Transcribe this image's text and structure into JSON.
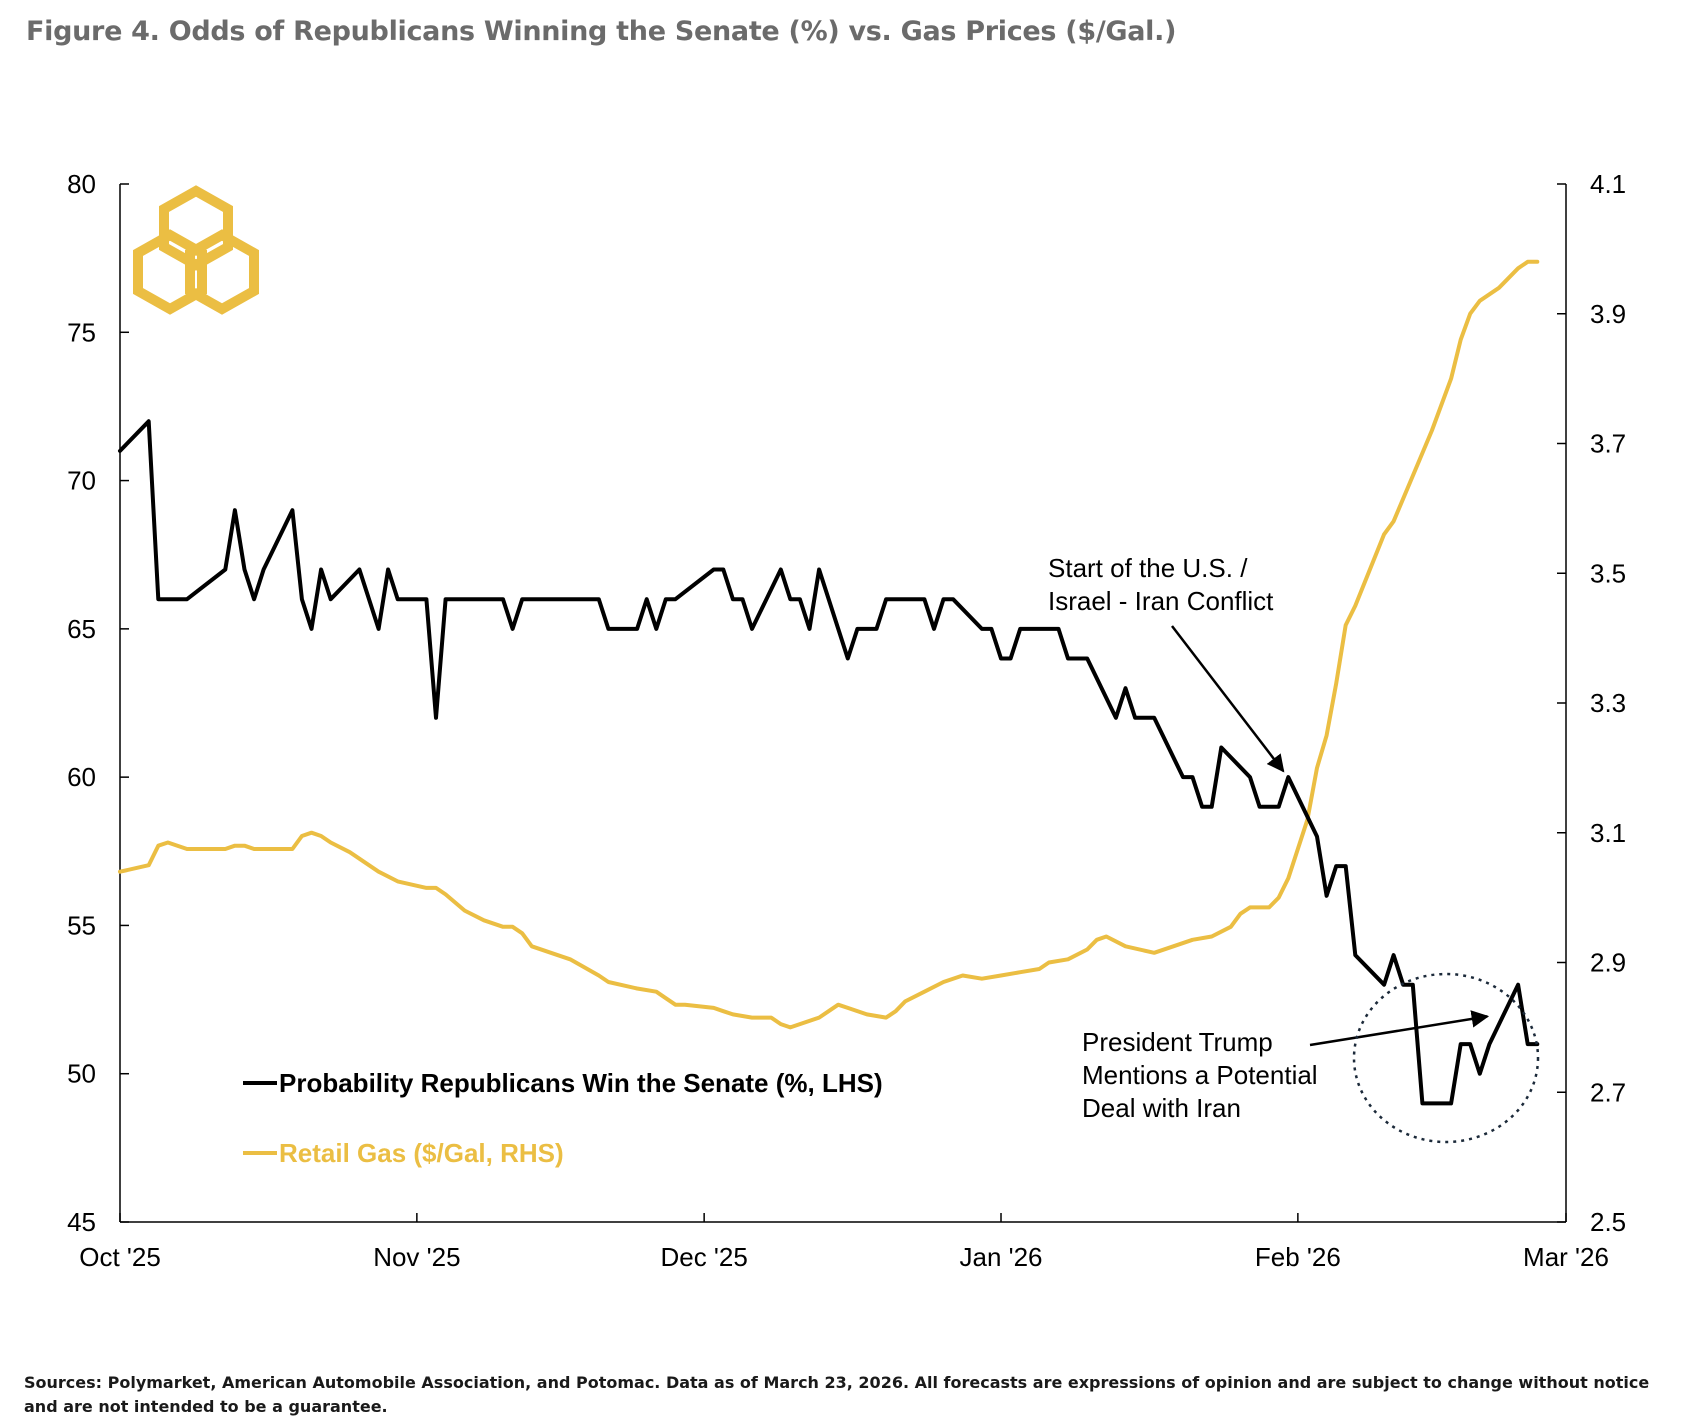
{
  "title": "Figure 4. Odds of Republicans Winning the Senate (%) vs. Gas Prices ($/Gal.)",
  "footnote": "Sources: Polymarket, American Automobile Association, and Potomac. Data as of March 23, 2026. All forecasts are expressions of opinion and are subject to change without notice and are not intended to be a guarantee.",
  "colors": {
    "gold": "#EBBE43",
    "black": "#000000",
    "title": "#6b6b6b"
  },
  "logo_icon": "hexagon-trefoil-logo-icon",
  "chart_data": {
    "type": "line",
    "x_axis": {
      "type": "date",
      "range": [
        "2025-10-01",
        "2026-03-01"
      ],
      "ticks": [
        {
          "date": "2025-10-01",
          "label": "Oct '25"
        },
        {
          "date": "2025-11-01",
          "label": "Nov '25"
        },
        {
          "date": "2025-12-01",
          "label": "Dec '25"
        },
        {
          "date": "2026-01-01",
          "label": "Jan '26"
        },
        {
          "date": "2026-02-01",
          "label": "Feb '26"
        },
        {
          "date": "2026-03-01",
          "label": "Mar '26"
        }
      ]
    },
    "y_left": {
      "range": [
        45,
        80
      ],
      "ticks": [
        "45",
        "50",
        "55",
        "60",
        "65",
        "70",
        "75",
        "80"
      ]
    },
    "y_right": {
      "range": [
        2.5,
        4.1
      ],
      "ticks": [
        "2.5",
        "2.7",
        "2.9",
        "3.1",
        "3.3",
        "3.5",
        "3.7",
        "3.9",
        "4.1"
      ]
    },
    "grid": false,
    "legend_position": "bottom-left",
    "series": [
      {
        "name": "Probability Republicans Win the Senate (%, LHS)",
        "axis": "left",
        "color": "#000000",
        "points": [
          [
            "2025-10-01",
            71
          ],
          [
            "2025-10-04",
            72
          ],
          [
            "2025-10-05",
            66
          ],
          [
            "2025-10-08",
            66
          ],
          [
            "2025-10-12",
            67
          ],
          [
            "2025-10-13",
            69
          ],
          [
            "2025-10-14",
            67
          ],
          [
            "2025-10-15",
            66
          ],
          [
            "2025-10-16",
            67
          ],
          [
            "2025-10-19",
            69
          ],
          [
            "2025-10-20",
            66
          ],
          [
            "2025-10-21",
            65
          ],
          [
            "2025-10-22",
            67
          ],
          [
            "2025-10-23",
            66
          ],
          [
            "2025-10-26",
            67
          ],
          [
            "2025-10-28",
            65
          ],
          [
            "2025-10-29",
            67
          ],
          [
            "2025-10-30",
            66
          ],
          [
            "2025-11-02",
            66
          ],
          [
            "2025-11-03",
            62
          ],
          [
            "2025-11-04",
            66
          ],
          [
            "2025-11-10",
            66
          ],
          [
            "2025-11-11",
            65
          ],
          [
            "2025-11-12",
            66
          ],
          [
            "2025-11-20",
            66
          ],
          [
            "2025-11-21",
            65
          ],
          [
            "2025-11-24",
            65
          ],
          [
            "2025-11-25",
            66
          ],
          [
            "2025-11-26",
            65
          ],
          [
            "2025-11-27",
            66
          ],
          [
            "2025-11-28",
            66
          ],
          [
            "2025-12-02",
            67
          ],
          [
            "2025-12-03",
            67
          ],
          [
            "2025-12-04",
            66
          ],
          [
            "2025-12-05",
            66
          ],
          [
            "2025-12-06",
            65
          ],
          [
            "2025-12-09",
            67
          ],
          [
            "2025-12-10",
            66
          ],
          [
            "2025-12-11",
            66
          ],
          [
            "2025-12-12",
            65
          ],
          [
            "2025-12-13",
            67
          ],
          [
            "2025-12-16",
            64
          ],
          [
            "2025-12-17",
            65
          ],
          [
            "2025-12-19",
            65
          ],
          [
            "2025-12-20",
            66
          ],
          [
            "2025-12-24",
            66
          ],
          [
            "2025-12-25",
            65
          ],
          [
            "2025-12-26",
            66
          ],
          [
            "2025-12-27",
            66
          ],
          [
            "2025-12-30",
            65
          ],
          [
            "2025-12-31",
            65
          ],
          [
            "2026-01-01",
            64
          ],
          [
            "2026-01-02",
            64
          ],
          [
            "2026-01-03",
            65
          ],
          [
            "2026-01-07",
            65
          ],
          [
            "2026-01-08",
            64
          ],
          [
            "2026-01-10",
            64
          ],
          [
            "2026-01-13",
            62
          ],
          [
            "2026-01-14",
            63
          ],
          [
            "2026-01-15",
            62
          ],
          [
            "2026-01-17",
            62
          ],
          [
            "2026-01-20",
            60
          ],
          [
            "2026-01-21",
            60
          ],
          [
            "2026-01-22",
            59
          ],
          [
            "2026-01-23",
            59
          ],
          [
            "2026-01-24",
            61
          ],
          [
            "2026-01-27",
            60
          ],
          [
            "2026-01-28",
            59
          ],
          [
            "2026-01-30",
            59
          ],
          [
            "2026-01-31",
            60
          ],
          [
            "2026-02-03",
            58
          ],
          [
            "2026-02-04",
            56
          ],
          [
            "2026-02-05",
            57
          ],
          [
            "2026-02-06",
            57
          ],
          [
            "2026-02-07",
            54
          ],
          [
            "2026-02-10",
            53
          ],
          [
            "2026-02-11",
            54
          ],
          [
            "2026-02-12",
            53
          ],
          [
            "2026-02-13",
            53
          ],
          [
            "2026-02-14",
            49
          ],
          [
            "2026-02-17",
            49
          ],
          [
            "2026-02-18",
            51
          ],
          [
            "2026-02-19",
            51
          ],
          [
            "2026-02-20",
            50
          ],
          [
            "2026-02-21",
            51
          ],
          [
            "2026-02-24",
            53
          ],
          [
            "2026-02-25",
            51
          ],
          [
            "2026-02-26",
            51
          ]
        ]
      },
      {
        "name": "Retail Gas ($/Gal, RHS)",
        "axis": "right",
        "color": "#EBBE43",
        "points": [
          [
            "2025-10-01",
            3.04
          ],
          [
            "2025-10-04",
            3.05
          ],
          [
            "2025-10-05",
            3.08
          ],
          [
            "2025-10-06",
            3.085
          ],
          [
            "2025-10-08",
            3.075
          ],
          [
            "2025-10-12",
            3.075
          ],
          [
            "2025-10-13",
            3.08
          ],
          [
            "2025-10-14",
            3.08
          ],
          [
            "2025-10-15",
            3.075
          ],
          [
            "2025-10-19",
            3.075
          ],
          [
            "2025-10-20",
            3.095
          ],
          [
            "2025-10-21",
            3.1
          ],
          [
            "2025-10-22",
            3.095
          ],
          [
            "2025-10-23",
            3.085
          ],
          [
            "2025-10-25",
            3.07
          ],
          [
            "2025-10-27",
            3.05
          ],
          [
            "2025-10-28",
            3.04
          ],
          [
            "2025-10-30",
            3.025
          ],
          [
            "2025-11-02",
            3.015
          ],
          [
            "2025-11-03",
            3.015
          ],
          [
            "2025-11-04",
            3.005
          ],
          [
            "2025-11-06",
            2.98
          ],
          [
            "2025-11-08",
            2.965
          ],
          [
            "2025-11-10",
            2.955
          ],
          [
            "2025-11-11",
            2.955
          ],
          [
            "2025-11-12",
            2.945
          ],
          [
            "2025-11-13",
            2.925
          ],
          [
            "2025-11-15",
            2.915
          ],
          [
            "2025-11-17",
            2.905
          ],
          [
            "2025-11-20",
            2.88
          ],
          [
            "2025-11-21",
            2.87
          ],
          [
            "2025-11-24",
            2.86
          ],
          [
            "2025-11-26",
            2.855
          ],
          [
            "2025-11-27",
            2.845
          ],
          [
            "2025-11-28",
            2.835
          ],
          [
            "2025-11-29",
            2.835
          ],
          [
            "2025-12-02",
            2.83
          ],
          [
            "2025-12-03",
            2.825
          ],
          [
            "2025-12-04",
            2.82
          ],
          [
            "2025-12-06",
            2.815
          ],
          [
            "2025-12-08",
            2.815
          ],
          [
            "2025-12-09",
            2.805
          ],
          [
            "2025-12-10",
            2.8
          ],
          [
            "2025-12-13",
            2.815
          ],
          [
            "2025-12-14",
            2.825
          ],
          [
            "2025-12-15",
            2.835
          ],
          [
            "2025-12-16",
            2.83
          ],
          [
            "2025-12-18",
            2.82
          ],
          [
            "2025-12-20",
            2.815
          ],
          [
            "2025-12-21",
            2.825
          ],
          [
            "2025-12-22",
            2.84
          ],
          [
            "2025-12-24",
            2.855
          ],
          [
            "2025-12-26",
            2.87
          ],
          [
            "2025-12-28",
            2.88
          ],
          [
            "2025-12-30",
            2.875
          ],
          [
            "2026-01-01",
            2.88
          ],
          [
            "2026-01-03",
            2.885
          ],
          [
            "2026-01-05",
            2.89
          ],
          [
            "2026-01-06",
            2.9
          ],
          [
            "2026-01-08",
            2.905
          ],
          [
            "2026-01-10",
            2.92
          ],
          [
            "2026-01-11",
            2.935
          ],
          [
            "2026-01-12",
            2.94
          ],
          [
            "2026-01-14",
            2.925
          ],
          [
            "2026-01-17",
            2.915
          ],
          [
            "2026-01-19",
            2.925
          ],
          [
            "2026-01-21",
            2.935
          ],
          [
            "2026-01-23",
            2.94
          ],
          [
            "2026-01-25",
            2.955
          ],
          [
            "2026-01-26",
            2.975
          ],
          [
            "2026-01-27",
            2.985
          ],
          [
            "2026-01-29",
            2.985
          ],
          [
            "2026-01-30",
            3.0
          ],
          [
            "2026-01-31",
            3.03
          ],
          [
            "2026-02-02",
            3.12
          ],
          [
            "2026-02-03",
            3.2
          ],
          [
            "2026-02-04",
            3.25
          ],
          [
            "2026-02-05",
            3.33
          ],
          [
            "2026-02-06",
            3.42
          ],
          [
            "2026-02-07",
            3.45
          ],
          [
            "2026-02-10",
            3.56
          ],
          [
            "2026-02-11",
            3.58
          ],
          [
            "2026-02-13",
            3.65
          ],
          [
            "2026-02-15",
            3.72
          ],
          [
            "2026-02-17",
            3.8
          ],
          [
            "2026-02-18",
            3.86
          ],
          [
            "2026-02-19",
            3.9
          ],
          [
            "2026-02-20",
            3.92
          ],
          [
            "2026-02-22",
            3.94
          ],
          [
            "2026-02-24",
            3.97
          ],
          [
            "2026-02-25",
            3.98
          ],
          [
            "2026-02-26",
            3.98
          ]
        ]
      }
    ],
    "annotations": [
      {
        "lines": [
          "Start of the U.S. /",
          "Israel - Iran Conflict"
        ],
        "arrow_to": [
          "2026-01-31",
          60
        ]
      },
      {
        "lines": [
          "President Trump",
          "Mentions a Potential",
          "Deal with Iran"
        ],
        "arrow_to": [
          "2026-02-21",
          52
        ],
        "circled": true
      }
    ]
  }
}
